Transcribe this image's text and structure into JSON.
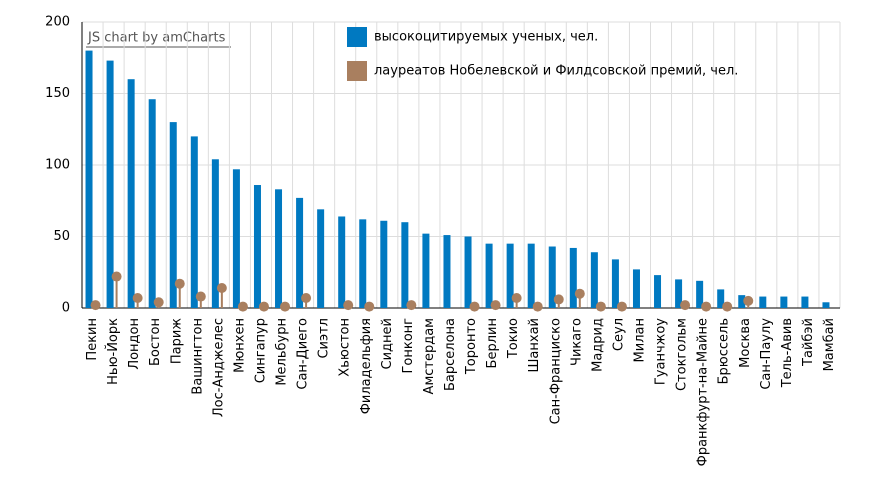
{
  "chart_data": {
    "type": "bar_lollipop",
    "credit": "JS chart by amCharts",
    "categories": [
      "Пекин",
      "Нью-Йорк",
      "Лондон",
      "Бостон",
      "Париж",
      "Вашингтон",
      "Лос-Анджелес",
      "Мюнхен",
      "Сингапур",
      "Мельбурн",
      "Сан-Диего",
      "Сиэтл",
      "Хьюстон",
      "Филадельфия",
      "Сидней",
      "Гонконг",
      "Амстердам",
      "Барселона",
      "Торонто",
      "Берлин",
      "Токио",
      "Шанхай",
      "Сан-Франциско",
      "Чикаго",
      "Мадрид",
      "Сеул",
      "Милан",
      "Гуанчжоу",
      "Стокгольм",
      "Франкфурт-на-Майне",
      "Брюссель",
      "Москва",
      "Сан-Паулу",
      "Тель-Авив",
      "Тайбэй",
      "Мамбай"
    ],
    "series": [
      {
        "name": "высокоцитируемых ученых, чел.",
        "color": "#0079c1",
        "kind": "bar",
        "values": [
          180,
          173,
          160,
          146,
          130,
          120,
          104,
          97,
          86,
          83,
          77,
          69,
          64,
          62,
          61,
          60,
          52,
          51,
          50,
          45,
          45,
          45,
          43,
          42,
          39,
          34,
          27,
          23,
          20,
          19,
          13,
          9,
          8,
          8,
          8,
          4
        ]
      },
      {
        "name": "лауреатов Нобелевской и Филдсовской премий, чел.",
        "color": "#a97f5f",
        "kind": "lollipop",
        "values": [
          2,
          22,
          7,
          4,
          17,
          8,
          14,
          1,
          1,
          1,
          7,
          null,
          2,
          1,
          null,
          2,
          null,
          null,
          1,
          2,
          7,
          1,
          6,
          10,
          1,
          1,
          null,
          null,
          2,
          1,
          1,
          5,
          null,
          null,
          null,
          null
        ]
      }
    ],
    "ylim": [
      0,
      200
    ],
    "yticks": [
      0,
      50,
      100,
      150,
      200
    ],
    "grid": true
  }
}
